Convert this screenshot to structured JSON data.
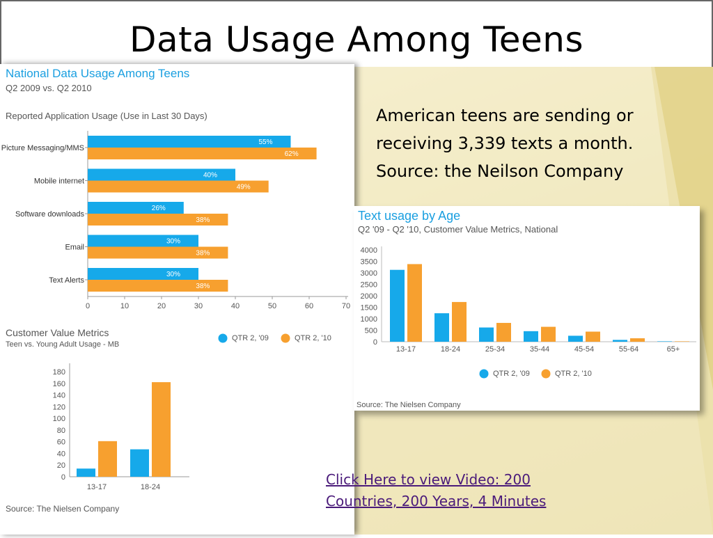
{
  "slide": {
    "title": "Data Usage Among Teens",
    "info_lines": [
      "American teens are sending or",
      "receiving 3,339 texts a month.",
      "Source: the Neilson Company"
    ],
    "link_lines": [
      "Click Here to view Video: 200",
      "Countries, 200 Years, 4 Minutes"
    ]
  },
  "colors": {
    "blue": "#16a9ea",
    "orange": "#f7a02f",
    "title_blue": "#1a9fe0",
    "gray_text": "#555555"
  },
  "chart_data": [
    {
      "type": "bar",
      "orientation": "horizontal",
      "title": "National Data Usage Among Teens",
      "subtitle": "Q2 2009 vs. Q2 2010",
      "section_label": "Reported Application Usage (Use in Last 30 Days)",
      "categories": [
        "Picture Messaging/MMS",
        "Mobile internet",
        "Software downloads",
        "Email",
        "Text Alerts"
      ],
      "series": [
        {
          "name": "QTR 2, '09",
          "values": [
            55,
            40,
            26,
            30,
            30
          ],
          "labels": [
            "55%",
            "40%",
            "26%",
            "30%",
            "30%"
          ]
        },
        {
          "name": "QTR 2, '10",
          "values": [
            62,
            49,
            38,
            38,
            38
          ],
          "labels": [
            "62%",
            "49%",
            "38%",
            "38%",
            "38%"
          ]
        }
      ],
      "xlim": [
        0,
        70
      ],
      "xticks": [
        "0",
        "10",
        "20",
        "30",
        "40",
        "50",
        "60",
        "70"
      ]
    },
    {
      "type": "bar",
      "title": "Customer Value Metrics",
      "subtitle": "Teen vs. Young Adult Usage - MB",
      "categories": [
        "13-17",
        "18-24"
      ],
      "series": [
        {
          "name": "QTR 2, '09",
          "values": [
            14,
            47
          ]
        },
        {
          "name": "QTR 2, '10",
          "values": [
            61,
            162
          ]
        }
      ],
      "ylim": [
        0,
        180
      ],
      "yticks": [
        "0",
        "20",
        "40",
        "60",
        "80",
        "100",
        "120",
        "140",
        "160",
        "180"
      ],
      "legend": [
        "QTR 2, '09",
        "QTR 2, '10"
      ],
      "source": "Source: The Nielsen Company"
    },
    {
      "type": "bar",
      "title": "Text usage by Age",
      "subtitle": "Q2 '09 - Q2 '10, Customer Value Metrics, National",
      "categories": [
        "13-17",
        "18-24",
        "25-34",
        "35-44",
        "45-54",
        "55-64",
        "65+"
      ],
      "series": [
        {
          "name": "QTR 2, '09",
          "values": [
            3130,
            1240,
            620,
            460,
            260,
            80,
            10
          ]
        },
        {
          "name": "QTR 2, '10",
          "values": [
            3380,
            1730,
            820,
            650,
            440,
            150,
            10
          ]
        }
      ],
      "ylim": [
        0,
        4000
      ],
      "yticks": [
        "0",
        "500",
        "1000",
        "1500",
        "2000",
        "2500",
        "3000",
        "3500",
        "4000"
      ],
      "legend": [
        "QTR 2, '09",
        "QTR 2, '10"
      ],
      "source": "Source: The Nielsen Company"
    }
  ]
}
